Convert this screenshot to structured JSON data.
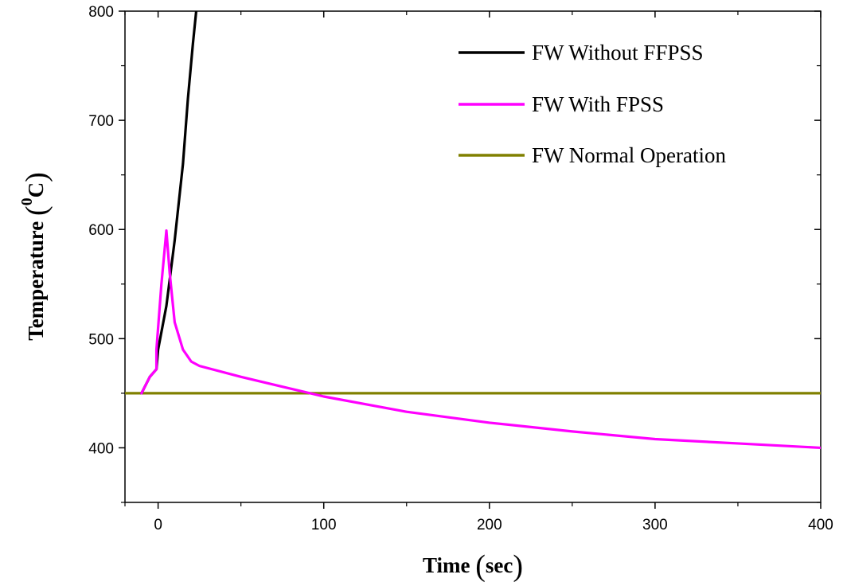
{
  "chart_data": {
    "type": "line",
    "title": "",
    "xlabel": "Time",
    "xlabel_unit": "sec",
    "ylabel": "Temperature",
    "ylabel_unit_sup": "0",
    "ylabel_unit": "C",
    "xlim": [
      -20,
      400
    ],
    "ylim": [
      350,
      800
    ],
    "x_ticks": [
      0,
      100,
      200,
      300,
      400
    ],
    "x_tick_labels": [
      "0",
      "100",
      "200",
      "300",
      "400"
    ],
    "x_minor_ticks": [
      -20,
      50,
      150,
      250,
      350
    ],
    "y_ticks": [
      400,
      500,
      600,
      700,
      800
    ],
    "y_tick_labels": [
      "400",
      "500",
      "600",
      "700",
      "800"
    ],
    "y_minor_ticks": [
      350,
      450,
      550,
      650,
      750
    ],
    "grid": false,
    "legend_position": "top-right",
    "series": [
      {
        "name": "FW Without FFPSS",
        "color": "#000000",
        "x": [
          -10,
          -5,
          -1,
          0,
          5,
          10,
          15,
          18,
          21,
          23
        ],
        "y": [
          450,
          465,
          472,
          490,
          530,
          590,
          660,
          720,
          770,
          800
        ]
      },
      {
        "name": "FW With FPSS",
        "color": "#ff00ff",
        "x": [
          -10,
          -5,
          -1,
          -1,
          2,
          5,
          7,
          10,
          15,
          20,
          25,
          50,
          75,
          100,
          150,
          200,
          250,
          300,
          350,
          400
        ],
        "y": [
          450,
          465,
          472,
          490,
          550,
          599,
          560,
          515,
          490,
          479,
          475,
          465,
          456,
          447,
          433,
          423,
          415,
          408,
          404,
          400
        ]
      },
      {
        "name": "FW Normal Operation",
        "color": "#808000",
        "x": [
          -20,
          400
        ],
        "y": [
          450,
          450
        ]
      }
    ]
  }
}
